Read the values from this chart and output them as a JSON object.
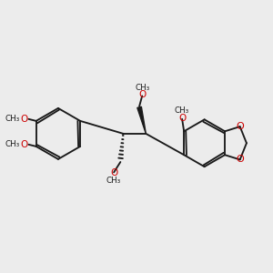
{
  "bg_color": "#ececec",
  "bond_color": "#1a1a1a",
  "o_color": "#cc0000",
  "lw": 1.35,
  "figsize": [
    3.0,
    3.0
  ],
  "dpi": 100,
  "xlim": [
    10,
    290
  ],
  "ylim": [
    55,
    265
  ]
}
